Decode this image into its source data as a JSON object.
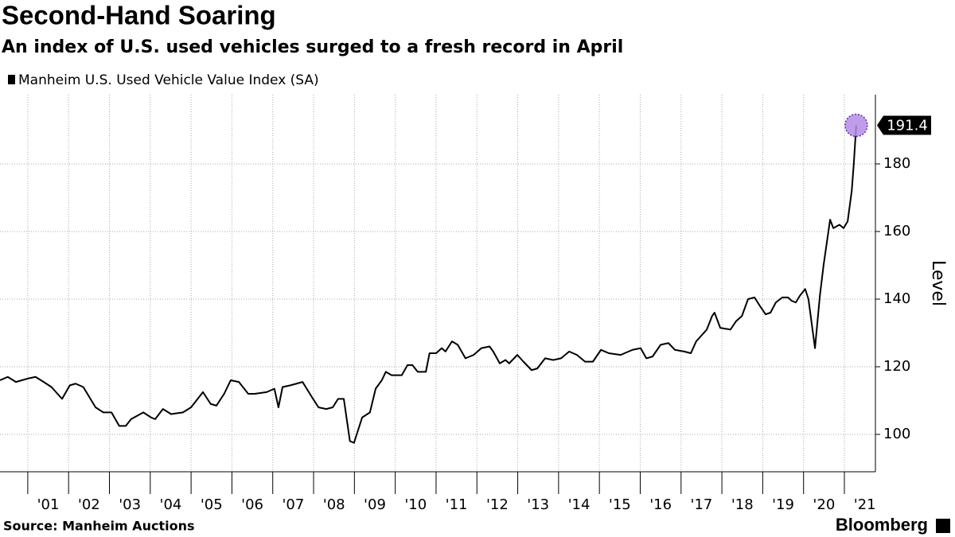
{
  "chart_data": {
    "type": "line",
    "title": "Second-Hand Soaring",
    "subtitle": "An index of U.S. used vehicles surged to a fresh record in April",
    "y_label": "Level",
    "source": "Source: Manheim Auctions",
    "brand": "Bloomberg",
    "xlim": [
      2000.32,
      2021.76
    ],
    "xticks": [
      2001,
      2002,
      2003,
      2004,
      2005,
      2006,
      2007,
      2008,
      2009,
      2010,
      2011,
      2012,
      2013,
      2014,
      2015,
      2016,
      2017,
      2018,
      2019,
      2020,
      2021
    ],
    "xtick_labels": [
      {
        "value": 2001.5,
        "label": "'01"
      },
      {
        "value": 2002.5,
        "label": "'02"
      },
      {
        "value": 2003.5,
        "label": "'03"
      },
      {
        "value": 2004.5,
        "label": "'04"
      },
      {
        "value": 2005.5,
        "label": "'05"
      },
      {
        "value": 2006.5,
        "label": "'06"
      },
      {
        "value": 2007.5,
        "label": "'07"
      },
      {
        "value": 2008.5,
        "label": "'08"
      },
      {
        "value": 2009.5,
        "label": "'09"
      },
      {
        "value": 2010.5,
        "label": "'10"
      },
      {
        "value": 2011.5,
        "label": "'11"
      },
      {
        "value": 2012.5,
        "label": "'12"
      },
      {
        "value": 2013.5,
        "label": "'13"
      },
      {
        "value": 2014.5,
        "label": "'14"
      },
      {
        "value": 2015.5,
        "label": "'15"
      },
      {
        "value": 2016.5,
        "label": "'16"
      },
      {
        "value": 2017.5,
        "label": "'17"
      },
      {
        "value": 2018.5,
        "label": "'18"
      },
      {
        "value": 2019.5,
        "label": "'19"
      },
      {
        "value": 2020.5,
        "label": "'20"
      },
      {
        "value": 2021.5,
        "label": "'21"
      }
    ],
    "ylim": [
      88.94,
      200.47
    ],
    "yticks": [
      100,
      120,
      140,
      160,
      180
    ],
    "grid": true,
    "x": [
      2000.32,
      2000.51,
      2000.71,
      2001.0,
      2001.19,
      2001.39,
      2001.58,
      2001.84,
      2002.03,
      2002.17,
      2002.36,
      2002.66,
      2002.85,
      2003.05,
      2003.24,
      2003.4,
      2003.53,
      2003.83,
      2004.02,
      2004.12,
      2004.31,
      2004.51,
      2004.8,
      2005.0,
      2005.29,
      2005.48,
      2005.62,
      2005.81,
      2005.97,
      2006.17,
      2006.4,
      2006.56,
      2006.85,
      2007.04,
      2007.14,
      2007.24,
      2007.43,
      2007.73,
      2007.96,
      2008.12,
      2008.31,
      2008.47,
      2008.6,
      2008.74,
      2008.89,
      2008.99,
      2009.19,
      2009.38,
      2009.52,
      2009.67,
      2009.77,
      2009.91,
      2010.16,
      2010.3,
      2010.42,
      2010.55,
      2010.75,
      2010.84,
      2011.0,
      2011.14,
      2011.23,
      2011.39,
      2011.53,
      2011.72,
      2011.92,
      2012.11,
      2012.31,
      2012.4,
      2012.56,
      2012.7,
      2012.79,
      2012.99,
      2013.14,
      2013.34,
      2013.48,
      2013.67,
      2013.87,
      2014.06,
      2014.26,
      2014.45,
      2014.65,
      2014.84,
      2015.04,
      2015.23,
      2015.52,
      2015.81,
      2016.01,
      2016.15,
      2016.3,
      2016.5,
      2016.69,
      2016.85,
      2017.08,
      2017.24,
      2017.37,
      2017.63,
      2017.76,
      2017.82,
      2017.96,
      2018.21,
      2018.35,
      2018.49,
      2018.64,
      2018.8,
      2018.93,
      2019.07,
      2019.19,
      2019.32,
      2019.48,
      2019.62,
      2019.71,
      2019.81,
      2019.91,
      2020.04,
      2020.12,
      2020.28,
      2020.4,
      2020.49,
      2020.65,
      2020.73,
      2020.88,
      2020.98,
      2021.08,
      2021.18,
      2021.23,
      2021.29
    ],
    "series": [
      {
        "name": "Manheim U.S. Used Vehicle Value Index (SA)",
        "color": "#000000",
        "marker_color": "#b58ce8",
        "values": [
          116,
          117,
          115.5,
          116.5,
          117,
          115.5,
          114,
          110.5,
          114.5,
          115,
          114,
          108,
          106.5,
          106.5,
          102.5,
          102.5,
          104.5,
          106.5,
          105,
          104.5,
          107.5,
          106,
          106.5,
          108,
          112.5,
          109,
          108.5,
          112,
          116,
          115.5,
          112,
          112,
          112.5,
          113.5,
          108,
          114,
          114.5,
          115.5,
          111,
          108,
          107.5,
          108,
          110.5,
          110.5,
          98,
          97.5,
          105,
          106.5,
          113.5,
          116,
          118.5,
          117.5,
          117.5,
          120.5,
          120.5,
          118.5,
          118.5,
          124,
          124,
          125.5,
          124.5,
          127.5,
          126.5,
          122.5,
          123.5,
          125.5,
          126,
          124.5,
          121,
          122,
          121,
          123.5,
          121.5,
          119,
          119.5,
          122.5,
          122,
          122.5,
          124.5,
          123.5,
          121.5,
          121.5,
          125,
          124,
          123.5,
          125,
          125.5,
          122.5,
          123,
          126.5,
          127,
          125,
          124.5,
          124,
          127.5,
          131,
          135,
          136,
          131.5,
          131,
          133.5,
          135,
          140,
          140.5,
          138,
          135.5,
          136,
          139,
          140.5,
          140.5,
          139.5,
          139,
          141,
          143,
          140,
          125.5,
          141,
          150,
          163.5,
          161,
          162,
          161,
          163,
          172,
          180,
          191.4
        ]
      }
    ]
  }
}
